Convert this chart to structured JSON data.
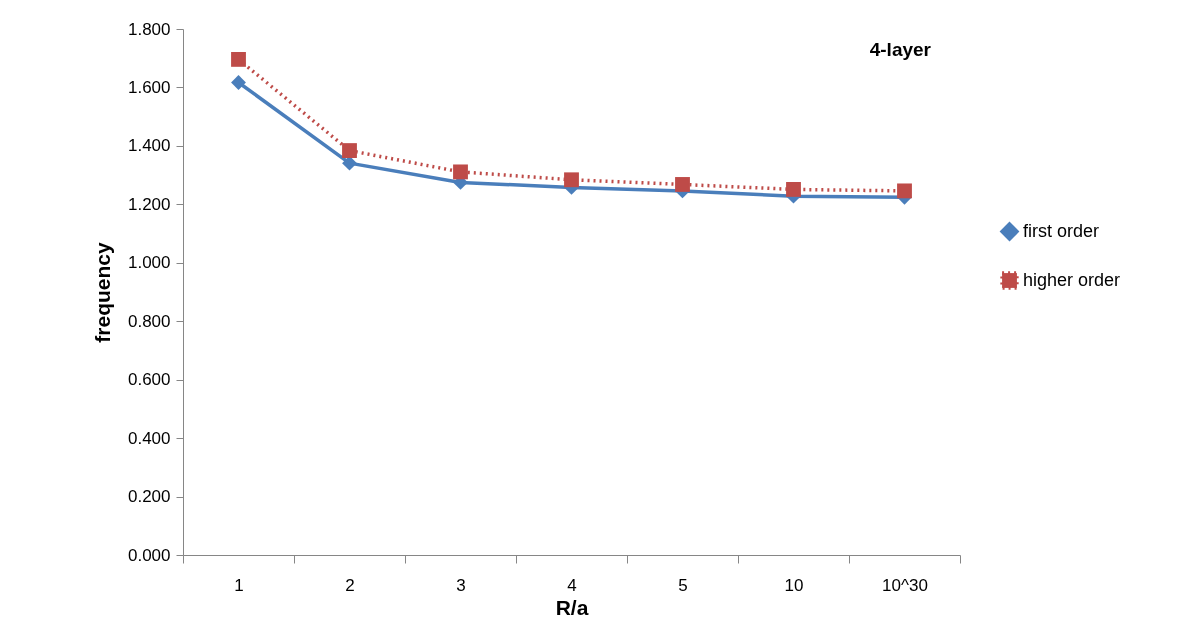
{
  "chart_data": {
    "type": "line",
    "title": "4-layer",
    "xlabel": "R/a",
    "ylabel": "frequency",
    "categories": [
      "1",
      "2",
      "3",
      "4",
      "5",
      "10",
      "10^30"
    ],
    "series": [
      {
        "name": "first order",
        "color": "#4a7ebb",
        "marker": "diamond",
        "line_style": "solid",
        "values": [
          1.617,
          1.341,
          1.275,
          1.258,
          1.246,
          1.228,
          1.224
        ]
      },
      {
        "name": "higher order",
        "color": "#be4b48",
        "marker": "square",
        "line_style": "dotted",
        "values": [
          1.696,
          1.384,
          1.311,
          1.284,
          1.268,
          1.251,
          1.246
        ]
      }
    ],
    "ylim": [
      0,
      1.8
    ],
    "yticks": [
      {
        "value": 0,
        "label": "0.000"
      },
      {
        "value": 0.2,
        "label": "0.200"
      },
      {
        "value": 0.4,
        "label": "0.400"
      },
      {
        "value": 0.6,
        "label": "0.600"
      },
      {
        "value": 0.8,
        "label": "0.800"
      },
      {
        "value": 1.0,
        "label": "1.000"
      },
      {
        "value": 1.2,
        "label": "1.200"
      },
      {
        "value": 1.4,
        "label": "1.400"
      },
      {
        "value": 1.6,
        "label": "1.600"
      },
      {
        "value": 1.8,
        "label": "1.800"
      }
    ],
    "grid": false,
    "legend": "right"
  }
}
